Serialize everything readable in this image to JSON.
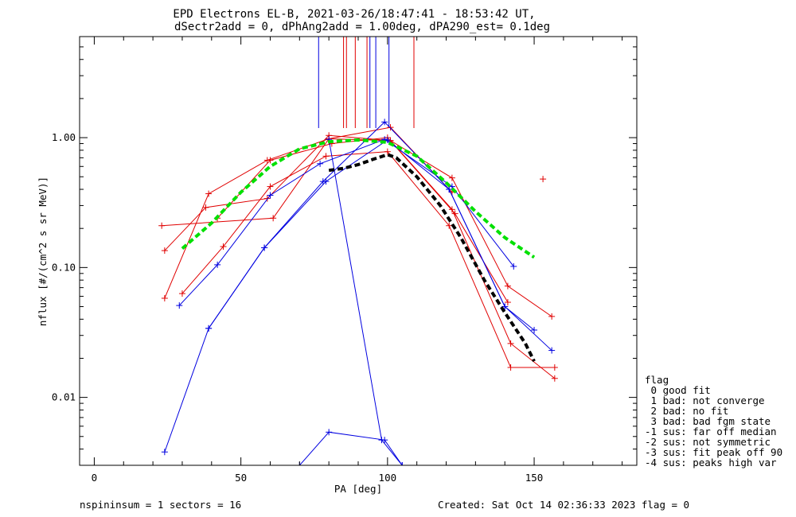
{
  "title": "EPD Electrons EL-B, 2021-03-26/18:47:41 - 18:53:42 UT,",
  "subtitle": "dSectr2add = 0, dPhAng2add = 1.00deg, dPA290_est=   0.1deg",
  "footer_left": "nspininsum =  1  sectors = 16",
  "footer_right": "Created: Sat Oct 14 02:36:33 2023   flag = 0",
  "flag_legend": {
    "title": "flag",
    "items": [
      " 0 good fit",
      " 1 bad: not converge",
      " 2 bad: no fit",
      " 3 bad: bad fgm state",
      "-1 sus: far off median",
      "-2 sus: not symmetric",
      "-3 sus: fit peak off 90",
      "-4 sus: peaks high var"
    ]
  },
  "colors": {
    "red": "#e00000",
    "blue": "#0000e0",
    "green": "#00e000",
    "black": "#000000"
  },
  "chart_data": {
    "type": "line",
    "xlabel": "PA [deg]",
    "ylabel": "nflux [#/(cm^2 s sr MeV)]",
    "xlim": [
      -5,
      185
    ],
    "ylim": [
      0.003,
      6
    ],
    "yscale": "log",
    "xticks": [
      0,
      50,
      100,
      150
    ],
    "xtick_labels": [
      "0",
      "50",
      "100",
      "150"
    ],
    "yticks": [
      0.01,
      0.1,
      1.0
    ],
    "ytick_labels": [
      "0.01",
      "0.10",
      "1.00"
    ],
    "series": [
      {
        "color": "red",
        "marker": "+",
        "x": [
          24,
          39,
          59,
          80,
          101,
          122,
          142,
          157
        ],
        "y": [
          0.058,
          0.37,
          0.67,
          0.98,
          0.95,
          0.28,
          0.026,
          0.014
        ]
      },
      {
        "color": "red",
        "marker": "+",
        "x": [
          24,
          38,
          59,
          80,
          101,
          122,
          141,
          156
        ],
        "y": [
          0.135,
          0.29,
          0.34,
          1.04,
          0.95,
          0.49,
          0.072,
          0.042
        ]
      },
      {
        "color": "red",
        "marker": "+",
        "x": [
          30,
          44,
          60,
          79,
          100,
          121,
          142,
          157
        ],
        "y": [
          0.063,
          0.145,
          0.42,
          0.72,
          0.78,
          0.21,
          0.017,
          0.017
        ]
      },
      {
        "color": "red",
        "marker": "+",
        "x": [
          23,
          61,
          80,
          101,
          122
        ],
        "y": [
          0.21,
          0.24,
          0.98,
          1.2,
          0.38
        ]
      },
      {
        "color": "red",
        "marker": "+",
        "x": [
          42,
          60,
          81,
          100,
          123,
          141
        ],
        "y": [
          0.24,
          0.67,
          0.9,
          1.0,
          0.26,
          0.054
        ]
      },
      {
        "color": "red",
        "marker": "+",
        "x": [
          153
        ],
        "y": [
          0.48
        ]
      },
      {
        "color": "blue",
        "marker": "+",
        "x": [
          29,
          42,
          60,
          77,
          99,
          122,
          143
        ],
        "y": [
          0.051,
          0.105,
          0.36,
          0.63,
          0.97,
          0.42,
          0.102
        ]
      },
      {
        "color": "blue",
        "marker": "+",
        "x": [
          39,
          58,
          79,
          100,
          121,
          140,
          156
        ],
        "y": [
          0.034,
          0.142,
          0.46,
          0.96,
          0.4,
          0.05,
          0.023
        ]
      },
      {
        "color": "blue",
        "marker": "+",
        "x": [
          24,
          39,
          58,
          78,
          99,
          121,
          140,
          150
        ],
        "y": [
          0.0038,
          0.034,
          0.142,
          0.46,
          1.32,
          0.4,
          0.05,
          0.033
        ]
      },
      {
        "color": "blue",
        "marker": "+",
        "x": [
          70,
          80,
          99,
          105
        ],
        "y": [
          0.003,
          0.0054,
          0.0047,
          0.003
        ]
      },
      {
        "color": "blue",
        "marker": "+",
        "x": [
          80,
          98,
          105
        ],
        "y": [
          0.97,
          0.0047,
          0.003
        ]
      },
      {
        "color": "green",
        "style": "dashed",
        "x": [
          30,
          40,
          50,
          60,
          70,
          80,
          90,
          100,
          110,
          120,
          130,
          140,
          150
        ],
        "y": [
          0.14,
          0.22,
          0.38,
          0.6,
          0.82,
          0.93,
          0.96,
          0.92,
          0.72,
          0.45,
          0.27,
          0.17,
          0.12
        ]
      },
      {
        "color": "black",
        "style": "dashed",
        "x": [
          80,
          85,
          90,
          95,
          100,
          103,
          110,
          118,
          125,
          133,
          140,
          147,
          150
        ],
        "y": [
          0.56,
          0.58,
          0.62,
          0.68,
          0.74,
          0.7,
          0.5,
          0.3,
          0.17,
          0.08,
          0.045,
          0.026,
          0.019
        ]
      }
    ],
    "peak_markers": [
      {
        "color": "blue",
        "x": [
          76.5,
          94,
          96,
          100.5
        ]
      },
      {
        "color": "red",
        "x": [
          85,
          86,
          89,
          93,
          109
        ]
      }
    ]
  }
}
